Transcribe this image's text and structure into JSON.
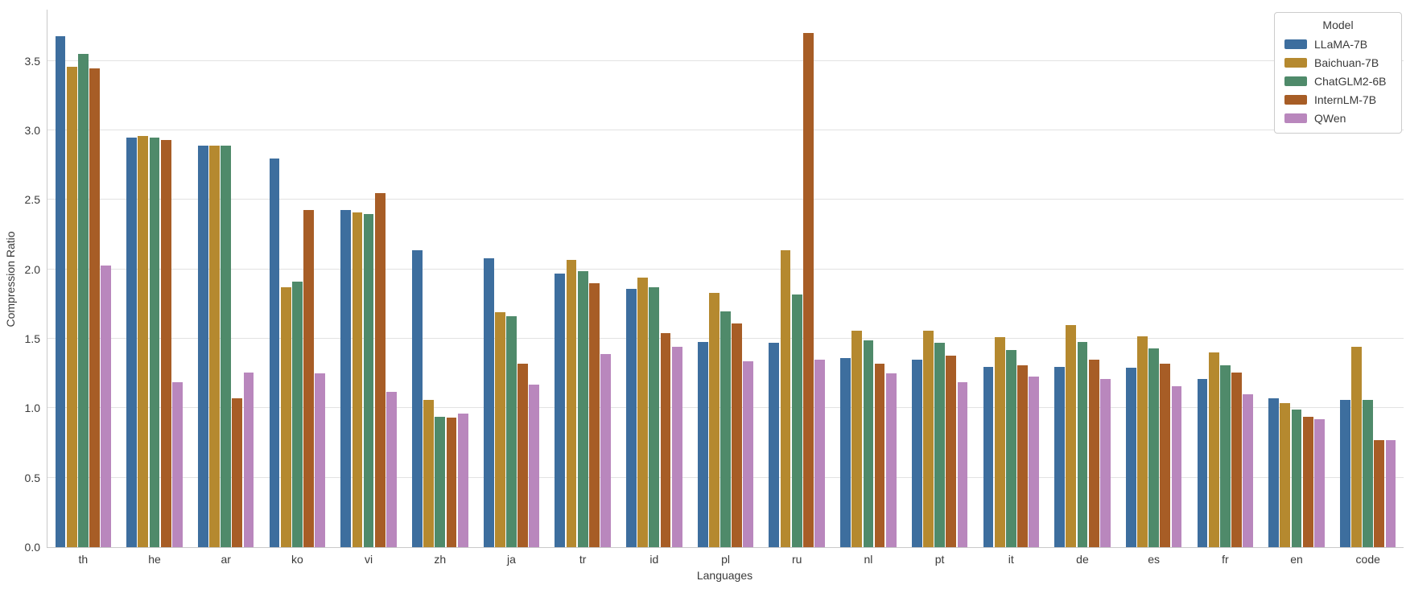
{
  "chart_data": {
    "type": "bar",
    "title": "",
    "xlabel": "Languages",
    "ylabel": "Compression Ratio",
    "legend_title": "Model",
    "legend_position": "upper right",
    "grid": true,
    "ylim": [
      0,
      3.87
    ],
    "yticks": [
      "0.0",
      "0.5",
      "1.0",
      "1.5",
      "2.0",
      "2.5",
      "3.0",
      "3.5"
    ],
    "categories": [
      "th",
      "he",
      "ar",
      "ko",
      "vi",
      "zh",
      "ja",
      "tr",
      "id",
      "pl",
      "ru",
      "nl",
      "pt",
      "it",
      "de",
      "es",
      "fr",
      "en",
      "code"
    ],
    "series": [
      {
        "name": "LLaMA-7B",
        "color": "#3d6e9e",
        "values": [
          3.68,
          2.95,
          2.89,
          2.8,
          2.43,
          2.14,
          2.08,
          1.97,
          1.86,
          1.48,
          1.47,
          1.36,
          1.35,
          1.3,
          1.3,
          1.29,
          1.21,
          1.07,
          1.06
        ]
      },
      {
        "name": "Baichuan-7B",
        "color": "#b5892f",
        "values": [
          3.46,
          2.96,
          2.89,
          1.87,
          2.41,
          1.06,
          1.69,
          2.07,
          1.94,
          1.83,
          2.14,
          1.56,
          1.56,
          1.51,
          1.6,
          1.52,
          1.4,
          1.04,
          1.44
        ]
      },
      {
        "name": "ChatGLM2-6B",
        "color": "#4f8a6a",
        "values": [
          3.55,
          2.95,
          2.89,
          1.91,
          2.4,
          0.94,
          1.66,
          1.99,
          1.87,
          1.7,
          1.82,
          1.49,
          1.47,
          1.42,
          1.48,
          1.43,
          1.31,
          0.99,
          1.06
        ]
      },
      {
        "name": "InternLM-7B",
        "color": "#a75d26",
        "values": [
          3.45,
          2.93,
          1.07,
          2.43,
          2.55,
          0.93,
          1.32,
          1.9,
          1.54,
          1.61,
          3.7,
          1.32,
          1.38,
          1.31,
          1.35,
          1.32,
          1.26,
          0.94,
          0.77
        ]
      },
      {
        "name": "QWen",
        "color": "#b987bd",
        "values": [
          2.03,
          1.19,
          1.26,
          1.25,
          1.12,
          0.96,
          1.17,
          1.39,
          1.44,
          1.34,
          1.35,
          1.25,
          1.19,
          1.23,
          1.21,
          1.16,
          1.1,
          0.92,
          0.77
        ]
      }
    ],
    "gridline_color": "#e2e2e2",
    "spine_color": "#c9c9c9",
    "background_color": "#ffffff"
  }
}
